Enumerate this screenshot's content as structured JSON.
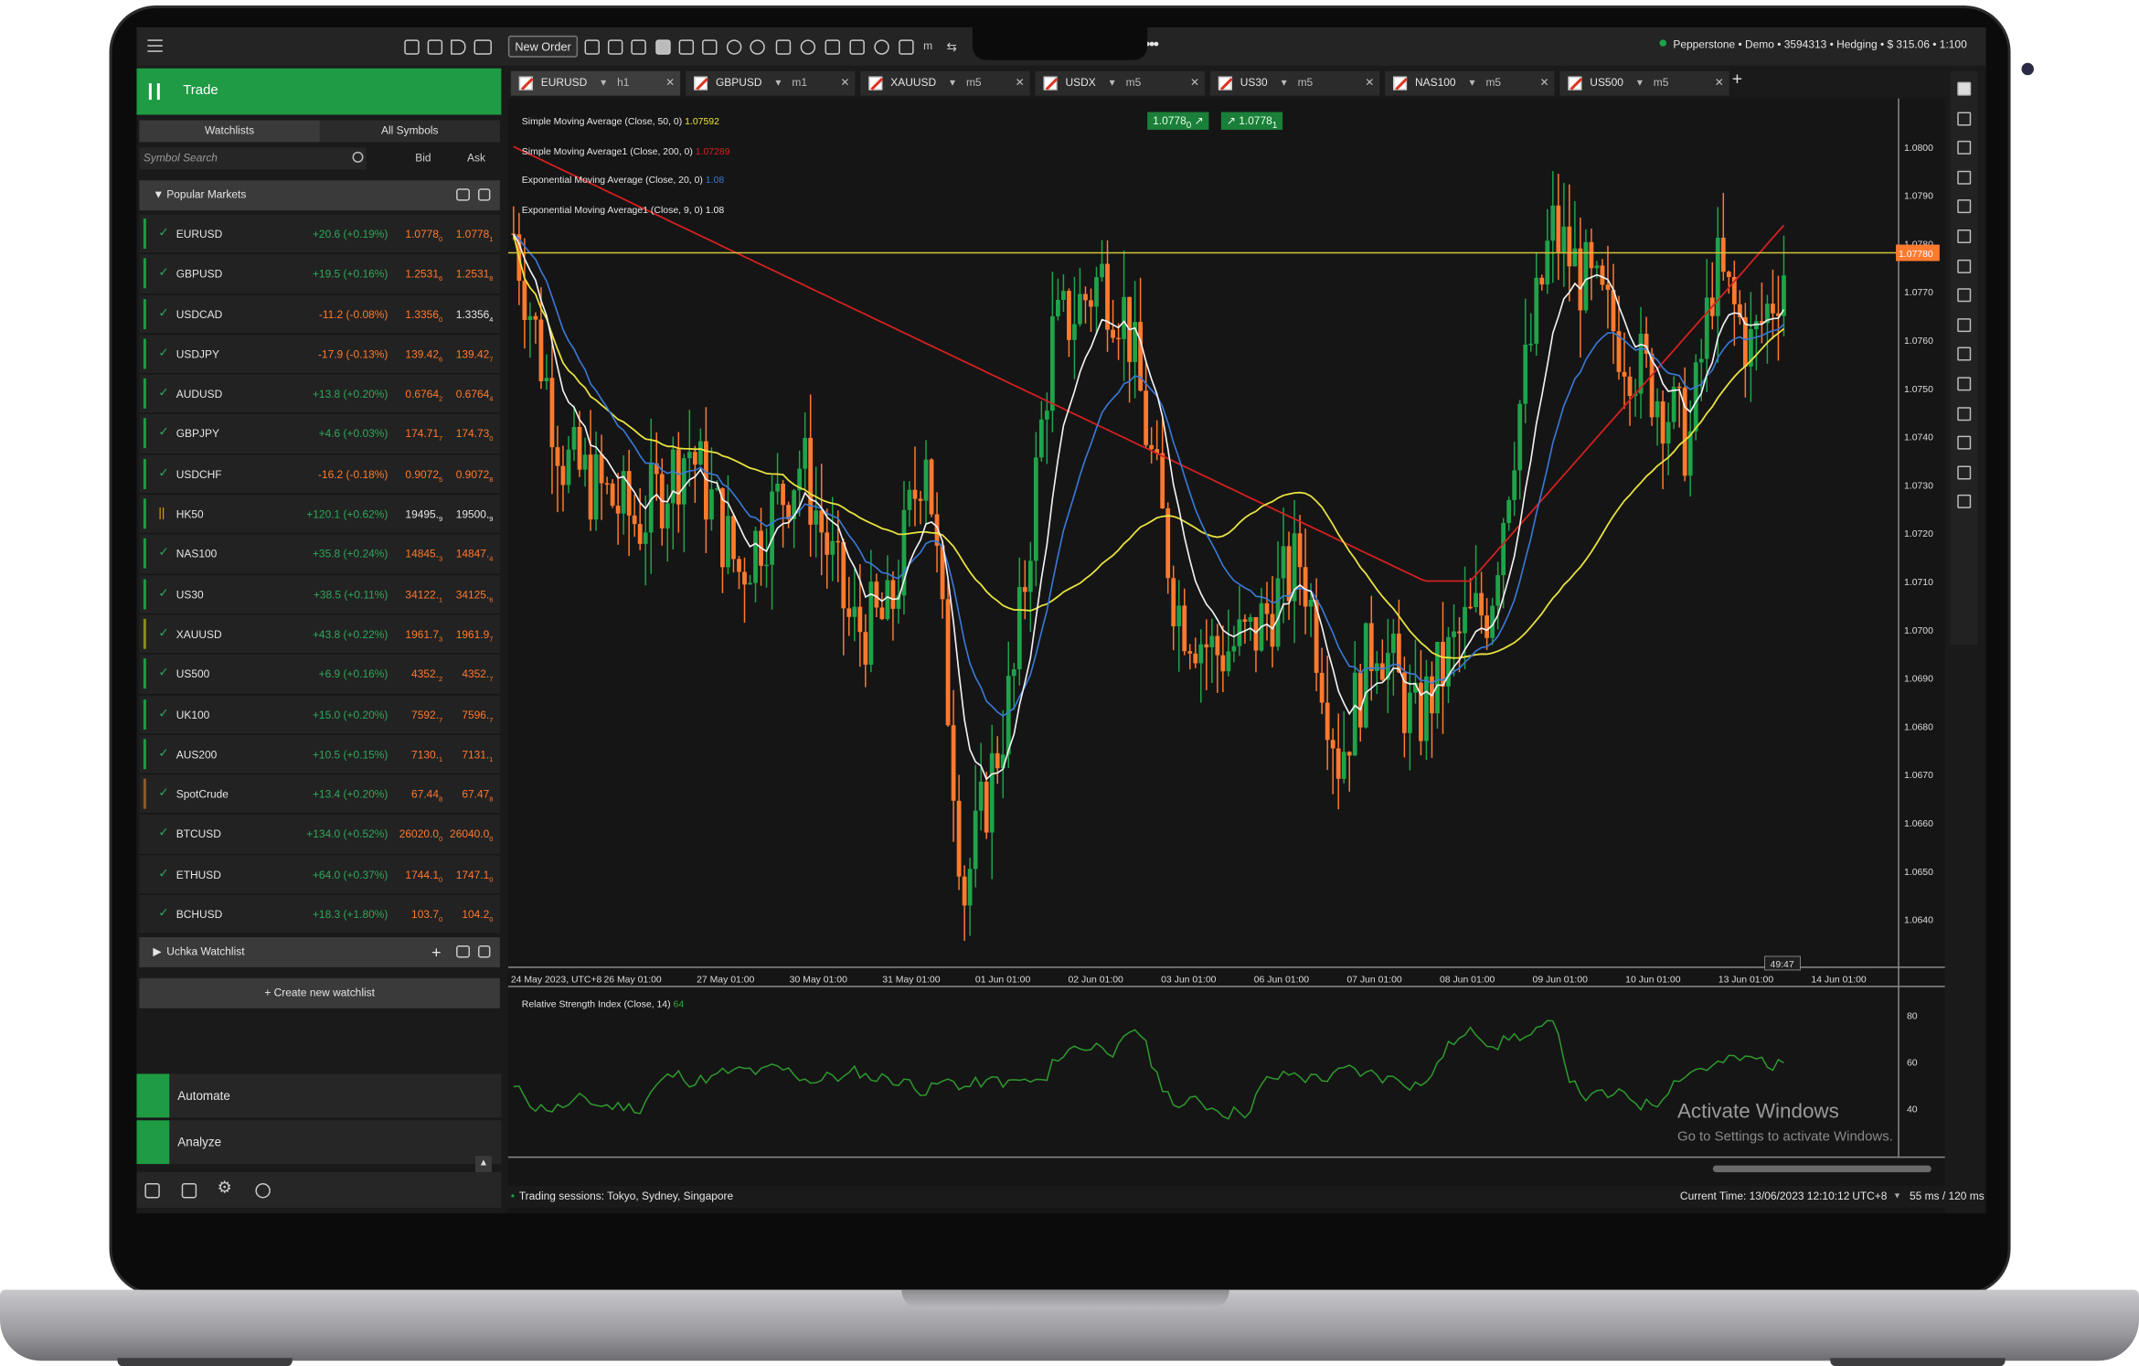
{
  "account": {
    "status": "Pepperstone • Demo • 3594313 • Hedging • $ 315.06 • 1:100"
  },
  "toolbar": {
    "new_order": "New Order",
    "more": "•••"
  },
  "sidebar": {
    "trade_label": "Trade",
    "tabs": [
      "Watchlists",
      "All Symbols"
    ],
    "search_placeholder": "Symbol Search",
    "bid_header": "Bid",
    "ask_header": "Ask",
    "popular_markets": "Popular Markets",
    "rows": [
      {
        "symbol": "EURUSD",
        "change": "+20.6 (+0.19%)",
        "bid": "1.0778",
        "bid_sub": "0",
        "ask": "1.0778",
        "ask_sub": "1",
        "dir": "up"
      },
      {
        "symbol": "GBPUSD",
        "change": "+19.5 (+0.16%)",
        "bid": "1.2531",
        "bid_sub": "6",
        "ask": "1.2531",
        "ask_sub": "8",
        "dir": "up"
      },
      {
        "symbol": "USDCAD",
        "change": "-11.2 (-0.08%)",
        "bid": "1.3356",
        "bid_sub": "0",
        "ask": "1.3356",
        "ask_sub": "4",
        "dir": "dn",
        "ask_white": true
      },
      {
        "symbol": "USDJPY",
        "change": "-17.9 (-0.13%)",
        "bid": "139.42",
        "bid_sub": "6",
        "ask": "139.42",
        "ask_sub": "7",
        "dir": "dn"
      },
      {
        "symbol": "AUDUSD",
        "change": "+13.8 (+0.20%)",
        "bid": "0.6764",
        "bid_sub": "2",
        "ask": "0.6764",
        "ask_sub": "4",
        "dir": "up"
      },
      {
        "symbol": "GBPJPY",
        "change": "+4.6 (+0.03%)",
        "bid": "174.71",
        "bid_sub": "7",
        "ask": "174.73",
        "ask_sub": "0",
        "dir": "up"
      },
      {
        "symbol": "USDCHF",
        "change": "-16.2 (-0.18%)",
        "bid": "0.9072",
        "bid_sub": "5",
        "ask": "0.9072",
        "ask_sub": "8",
        "dir": "dn"
      },
      {
        "symbol": "HK50",
        "change": "+120.1 (+0.62%)",
        "bid": "19495.",
        "bid_sub": "9",
        "ask": "19500.",
        "ask_sub": "9",
        "dir": "up",
        "bid_white": true,
        "ask_white": true,
        "paused": true
      },
      {
        "symbol": "NAS100",
        "change": "+35.8 (+0.24%)",
        "bid": "14845.",
        "bid_sub": "3",
        "ask": "14847.",
        "ask_sub": "4",
        "dir": "up"
      },
      {
        "symbol": "US30",
        "change": "+38.5 (+0.11%)",
        "bid": "34122.",
        "bid_sub": "1",
        "ask": "34125.",
        "ask_sub": "6",
        "dir": "up"
      },
      {
        "symbol": "XAUUSD",
        "change": "+43.8 (+0.22%)",
        "bid": "1961.7",
        "bid_sub": "3",
        "ask": "1961.9",
        "ask_sub": "7",
        "dir": "up",
        "olive": true
      },
      {
        "symbol": "US500",
        "change": "+6.9 (+0.16%)",
        "bid": "4352.",
        "bid_sub": "2",
        "ask": "4352.",
        "ask_sub": "7",
        "dir": "up"
      },
      {
        "symbol": "UK100",
        "change": "+15.0 (+0.20%)",
        "bid": "7592.",
        "bid_sub": "7",
        "ask": "7596.",
        "ask_sub": "7",
        "dir": "up"
      },
      {
        "symbol": "AUS200",
        "change": "+10.5 (+0.15%)",
        "bid": "7130.",
        "bid_sub": "1",
        "ask": "7131.",
        "ask_sub": "1",
        "dir": "up"
      },
      {
        "symbol": "SpotCrude",
        "change": "+13.4 (+0.20%)",
        "bid": "67.44",
        "bid_sub": "8",
        "ask": "67.47",
        "ask_sub": "8",
        "dir": "up",
        "brown": true
      },
      {
        "symbol": "BTCUSD",
        "change": "+134.0 (+0.52%)",
        "bid": "26020.0",
        "bid_sub": "0",
        "ask": "26040.0",
        "ask_sub": "0",
        "dir": "up",
        "nobar": true
      },
      {
        "symbol": "ETHUSD",
        "change": "+64.0 (+0.37%)",
        "bid": "1744.1",
        "bid_sub": "0",
        "ask": "1747.1",
        "ask_sub": "0",
        "dir": "up",
        "nobar": true
      },
      {
        "symbol": "BCHUSD",
        "change": "+18.3 (+1.80%)",
        "bid": "103.7",
        "bid_sub": "0",
        "ask": "104.2",
        "ask_sub": "0",
        "dir": "up",
        "nobar": true
      }
    ],
    "second_watchlist": "Uchka Watchlist",
    "create_watchlist": "+ Create new watchlist",
    "automate": "Automate",
    "analyze": "Analyze"
  },
  "tabs": [
    {
      "label": "EURUSD",
      "tf": "h1"
    },
    {
      "label": "GBPUSD",
      "tf": "m1"
    },
    {
      "label": "XAUUSD",
      "tf": "m5"
    },
    {
      "label": "USDX",
      "tf": "m5"
    },
    {
      "label": "US30",
      "tf": "m5"
    },
    {
      "label": "NAS100",
      "tf": "m5"
    },
    {
      "label": "US500",
      "tf": "m5"
    }
  ],
  "chart": {
    "indicators": [
      {
        "label": "Simple Moving Average (Close, 50, 0)",
        "value": "1.07592",
        "color": "#e8e240"
      },
      {
        "label": "Simple Moving Average1 (Close, 200, 0)",
        "value": "1.07289",
        "color": "#d42020"
      },
      {
        "label": "Exponential Moving Average (Close, 20, 0)",
        "value": "1.08",
        "color": "#3a78d4"
      },
      {
        "label": "Exponential Moving Average1 (Close, 9, 0)",
        "value": "1.08",
        "color": "#f2f2f2"
      }
    ],
    "bid_box": "1.0778",
    "bid_box_sub": "0",
    "ask_box": "1.0778",
    "ask_box_sub": "1",
    "current_price": "1.07780",
    "price_axis": [
      "1.0800",
      "1.0790",
      "1.0780",
      "1.0770",
      "1.0760",
      "1.0750",
      "1.0740",
      "1.0730",
      "1.0720",
      "1.0710",
      "1.0700",
      "1.0690",
      "1.0680",
      "1.0670",
      "1.0660",
      "1.0650",
      "1.0640"
    ],
    "time_axis": [
      "24 May 2023, UTC+8",
      "26 May 01:00",
      "27 May 01:00",
      "30 May 01:00",
      "31 May 01:00",
      "01 Jun 01:00",
      "02 Jun 01:00",
      "03 Jun 01:00",
      "06 Jun 01:00",
      "07 Jun 01:00",
      "08 Jun 01:00",
      "09 Jun 01:00",
      "10 Jun 01:00",
      "13 Jun 01:00",
      "14 Jun 01:00"
    ],
    "countdown": "49:47",
    "rsi_label": "Relative Strength Index (Close, 14)",
    "rsi_value": "64",
    "rsi_axis": [
      "80",
      "60",
      "40"
    ]
  },
  "windows_watermark": {
    "title": "Activate Windows",
    "subtitle": "Go to Settings to activate Windows."
  },
  "status": {
    "sessions": "Trading sessions: Tokyo, Sydney, Singapore",
    "current_time": "Current Time:  13/06/2023 12:10:12",
    "tz": "UTC+8",
    "latency": "55 ms / 120 ms"
  },
  "colors": {
    "accent": "#1e9b43",
    "bull": "#1fa34a",
    "bear": "#ff7a2e"
  }
}
